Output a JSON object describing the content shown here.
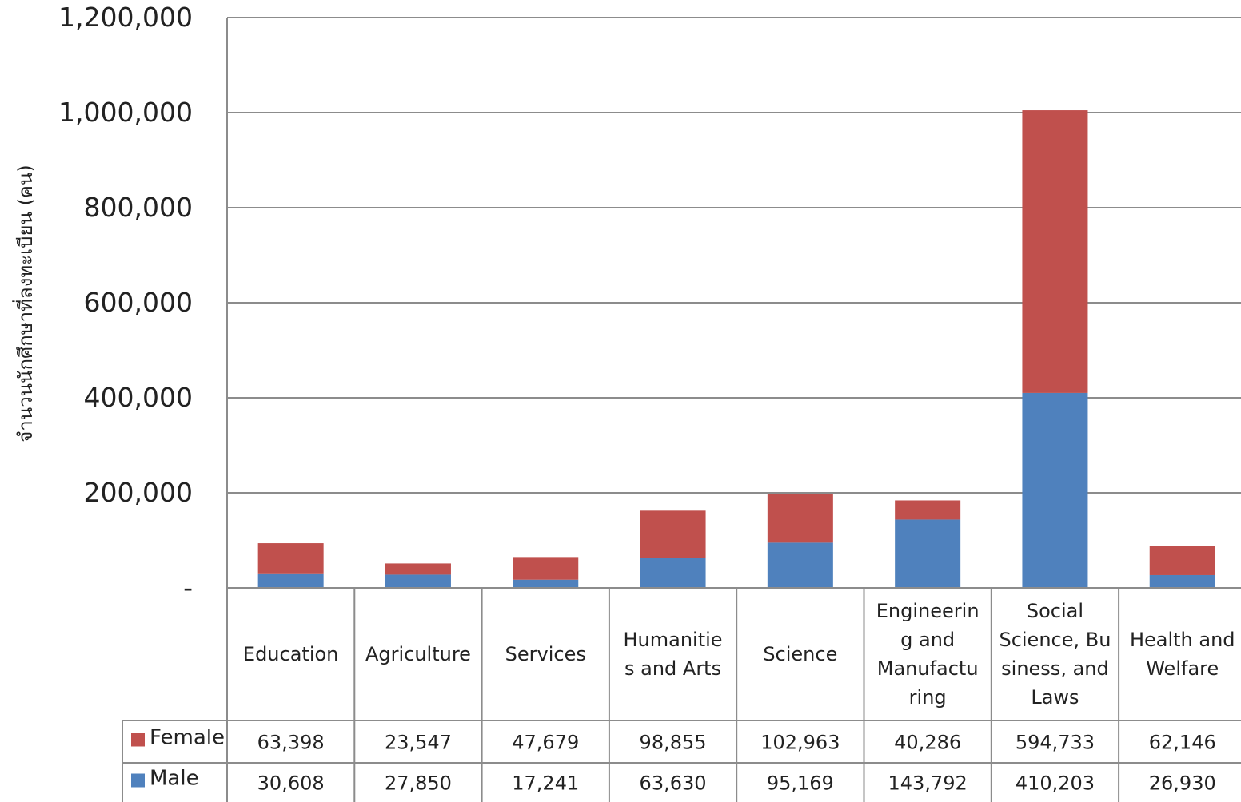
{
  "chart_data": {
    "type": "bar",
    "stacked": true,
    "ylabel": "จำนวนนักศึกษาที่ลงทะเบียน (คน)",
    "ylim": [
      0,
      1200000
    ],
    "yticks": [
      0,
      200000,
      400000,
      600000,
      800000,
      1000000,
      1200000
    ],
    "ytick_labels": [
      "-",
      "200,000",
      "400,000",
      "600,000",
      "800,000",
      "1,000,000",
      "1,200,000"
    ],
    "grid": true,
    "legend": "data-table-left",
    "categories": [
      "Education",
      "Agriculture",
      "Services",
      "Humanities and Arts",
      "Science",
      "Engineering and Manufacturing",
      "Social Science, Business, and Laws",
      "Health and Welfare"
    ],
    "category_label_lines": [
      [
        "Education"
      ],
      [
        "Agriculture"
      ],
      [
        "Services"
      ],
      [
        "Humanitie",
        "s and Arts"
      ],
      [
        "Science"
      ],
      [
        "Engineerin",
        "g and",
        "Manufactu",
        "ring"
      ],
      [
        "Social",
        "Science, Bu",
        "siness, and",
        "Laws"
      ],
      [
        "Health and",
        "Welfare"
      ]
    ],
    "series": [
      {
        "name": "Female",
        "color": "#c0504d",
        "values": [
          63398,
          23547,
          47679,
          98855,
          102963,
          40286,
          594733,
          62146
        ],
        "labels": [
          "63,398",
          "23,547",
          "47,679",
          "98,855",
          "102,963",
          "40,286",
          "594,733",
          "62,146"
        ]
      },
      {
        "name": "Male",
        "color": "#4f81bd",
        "values": [
          30608,
          27850,
          17241,
          63630,
          95169,
          143792,
          410203,
          26930
        ],
        "labels": [
          "30,608",
          "27,850",
          "17,241",
          "63,630",
          "95,169",
          "143,792",
          "410,203",
          "26,930"
        ]
      }
    ]
  }
}
